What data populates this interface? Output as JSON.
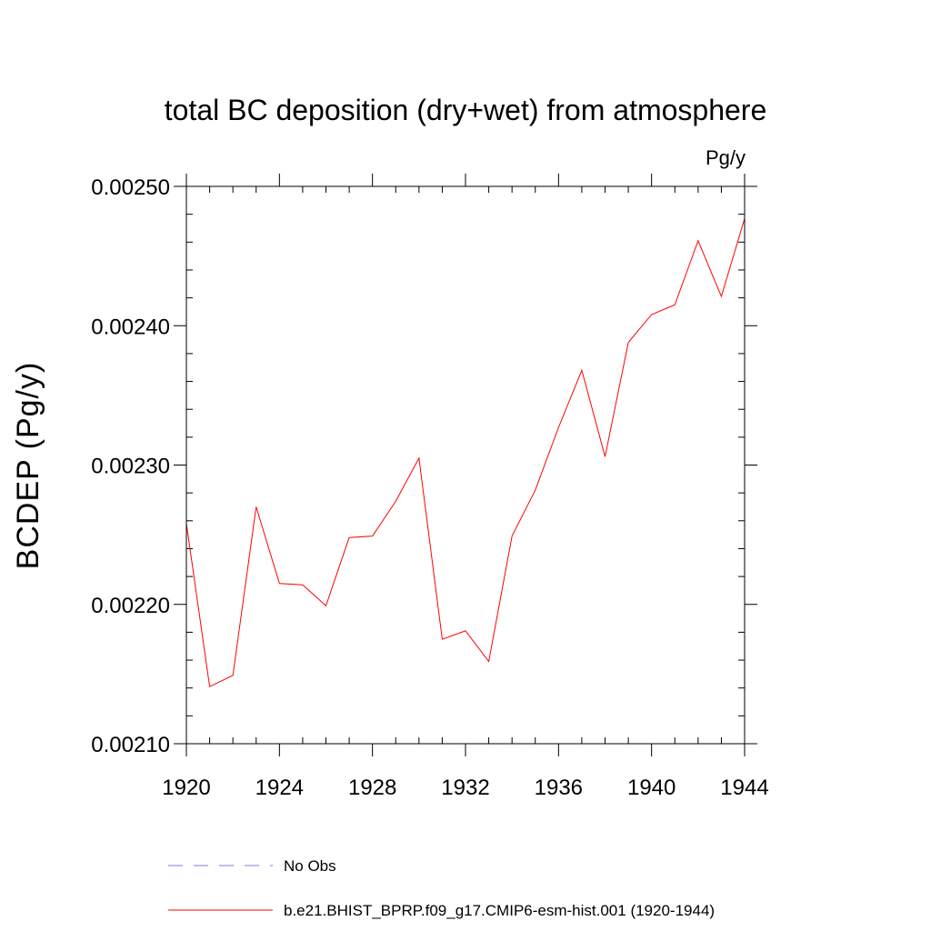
{
  "chart_data": {
    "type": "line",
    "title": "total BC deposition (dry+wet) from atmosphere",
    "units_label": "Pg/y",
    "xlabel": "",
    "ylabel": "BCDEP  (Pg/y)",
    "xlim": [
      1920,
      1944
    ],
    "ylim": [
      0.0021,
      0.0025
    ],
    "x_ticks": [
      1920,
      1924,
      1928,
      1932,
      1936,
      1940,
      1944
    ],
    "x_tick_labels": [
      "1920",
      "1924",
      "1928",
      "1932",
      "1936",
      "1940",
      "1944"
    ],
    "y_ticks": [
      0.0021,
      0.0022,
      0.0023,
      0.0024,
      0.0025
    ],
    "y_tick_labels": [
      "0.00210",
      "0.00220",
      "0.00230",
      "0.00240",
      "0.00250"
    ],
    "grid": false,
    "legend_position": "bottom",
    "series": [
      {
        "name": "No Obs",
        "color": "#7b7bd6",
        "style": "dashed",
        "x": [],
        "values": []
      },
      {
        "name": "b.e21.BHIST_BPRP.f09_g17.CMIP6-esm-hist.001 (1920-1944)",
        "color": "#ff0000",
        "style": "solid",
        "x": [
          1920,
          1921,
          1922,
          1923,
          1924,
          1925,
          1926,
          1927,
          1928,
          1929,
          1930,
          1931,
          1932,
          1933,
          1934,
          1935,
          1936,
          1937,
          1938,
          1939,
          1940,
          1941,
          1942,
          1943,
          1944
        ],
        "values": [
          0.002258,
          0.002141,
          0.002149,
          0.00227,
          0.002215,
          0.002214,
          0.002199,
          0.002248,
          0.002249,
          0.002274,
          0.002305,
          0.002175,
          0.002181,
          0.002159,
          0.002249,
          0.002282,
          0.002327,
          0.002368,
          0.002306,
          0.002388,
          0.002408,
          0.002415,
          0.002461,
          0.002421,
          0.002477
        ]
      }
    ]
  }
}
